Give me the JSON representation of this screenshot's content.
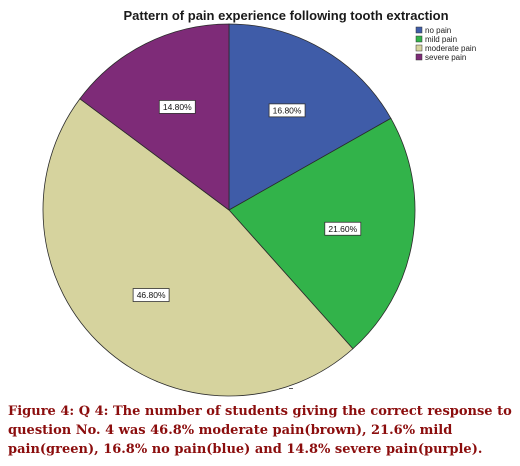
{
  "chart_data": {
    "type": "pie",
    "title": "Pattern of pain experience following tooth extraction",
    "categories": [
      "no pain",
      "mild pain",
      "moderate pain",
      "severe pain"
    ],
    "values": [
      16.8,
      21.6,
      46.8,
      14.8
    ],
    "value_labels": [
      "16.80%",
      "21.60%",
      "46.80%",
      "14.80%"
    ],
    "colors": [
      "#3f5ca8",
      "#32b34a",
      "#d6d39e",
      "#7e2b78"
    ],
    "legend": {
      "placement": "top-right",
      "entries": [
        "no pain",
        "mild pain",
        "moderate pain",
        "severe pain"
      ]
    }
  },
  "caption": {
    "text": "Figure 4: Q 4: The number of students giving the correct response to question No. 4 was 46.8% moderate pain(brown), 21.6% mild pain(green), 16.8% no pain(blue) and 14.8% severe pain(purple)."
  }
}
